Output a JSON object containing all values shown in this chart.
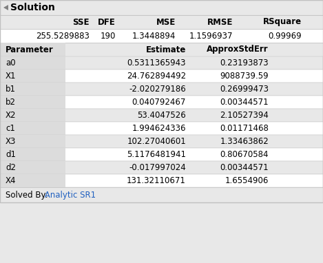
{
  "title": "Solution",
  "stats_headers": [
    "SSE",
    "DFE",
    "MSE",
    "RMSE",
    "RSquare"
  ],
  "stats_values": [
    "255.5289883",
    "190",
    "1.3448894",
    "1.1596937",
    "0.99969"
  ],
  "param_headers": [
    "Parameter",
    "Estimate",
    "ApproxStdErr"
  ],
  "params": [
    [
      "a0",
      "0.5311365943",
      "0.23193873"
    ],
    [
      "X1",
      "24.762894492",
      "9088739.59"
    ],
    [
      "b1",
      "-2.020279186",
      "0.26999473"
    ],
    [
      "b2",
      "0.040792467",
      "0.00344571"
    ],
    [
      "X2",
      "53.4047526",
      "2.10527394"
    ],
    [
      "c1",
      "1.994624336",
      "0.01171468"
    ],
    [
      "X3",
      "102.27040601",
      "1.33463862"
    ],
    [
      "d1",
      "5.1176481941",
      "0.80670584"
    ],
    [
      "d2",
      "-0.017997024",
      "0.00344571"
    ],
    [
      "X4",
      "131.32110671",
      "1.6554906"
    ]
  ],
  "footer_label": "Solved By: ",
  "footer_value": " Analytic SR1",
  "bg_color": "#e8e8e8",
  "white_color": "#ffffff",
  "border_color": "#c0c0c0",
  "text_color": "#000000",
  "footer_text_color": "#2060c0",
  "title_fontsize": 10,
  "header_fontsize": 8.5,
  "data_fontsize": 8.5,
  "footer_fontsize": 8.5,
  "tri_color": "#808080",
  "param_col_bg": "#dcdcdc",
  "stats_row_bg": "#e8e8e8"
}
